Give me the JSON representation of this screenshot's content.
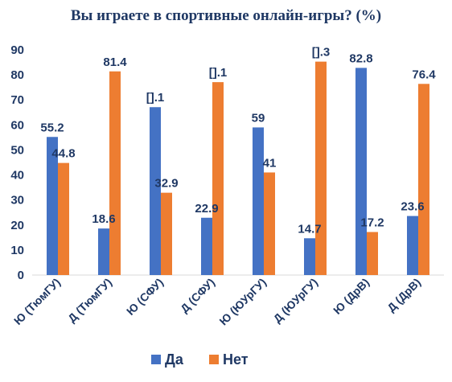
{
  "chart_data": {
    "type": "bar",
    "title": "Вы играете в спортивные онлайн-игры? (%)",
    "categories": [
      "Ю (ТюмГУ)",
      "Д (ТюмГУ)",
      "Ю (СФУ)",
      "Д (СФУ)",
      "Ю (ЮУрГУ)",
      "Д (ЮУрГУ)",
      "Ю (ДрВ)",
      "Д (ДрВ)"
    ],
    "series": [
      {
        "name": "Да",
        "color": "#4472c4",
        "values": [
          55.2,
          18.6,
          67.1,
          22.9,
          59,
          14.7,
          82.8,
          23.6
        ],
        "labels": [
          "55.2",
          "18.6",
          "[].1",
          "22.9",
          "59",
          "14.7",
          "82.8",
          "23.6"
        ]
      },
      {
        "name": "Нет",
        "color": "#ed7d31",
        "values": [
          44.8,
          81.4,
          32.9,
          77.1,
          41,
          85.3,
          17.2,
          76.4
        ],
        "labels": [
          "44.8",
          "81.4",
          "32.9",
          "[].1",
          "41",
          "[].3",
          "17.2",
          "76.4"
        ]
      }
    ],
    "yticks": [
      "0",
      "10",
      "20",
      "30",
      "40",
      "50",
      "60",
      "70",
      "80",
      "90"
    ],
    "ylim": [
      0,
      90
    ],
    "grid": false,
    "legend": "bottom",
    "text_color": "#1f3864"
  }
}
